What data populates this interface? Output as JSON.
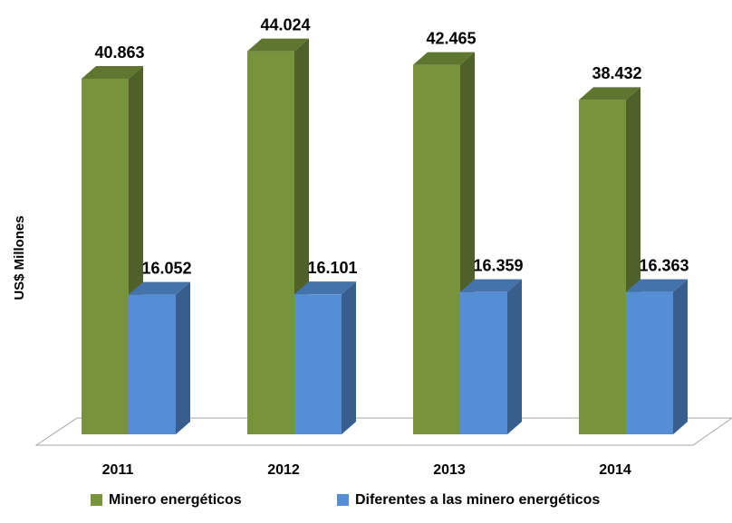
{
  "chart_data": {
    "type": "bar3d",
    "y_label": "US$ Millones",
    "categories": [
      "2011",
      "2012",
      "2013",
      "2014"
    ],
    "series": [
      {
        "name": "Minero energéticos",
        "color": "#77933c",
        "values": [
          40863,
          44024,
          42465,
          38432
        ],
        "value_labels": [
          "40.863",
          "44.024",
          "42.465",
          "38.432"
        ]
      },
      {
        "name": "Diferentes a las minero energéticos",
        "color": "#558ed5",
        "values": [
          16052,
          16101,
          16359,
          16363
        ],
        "value_labels": [
          "16.052",
          "16.101",
          "16.359",
          "16.363"
        ]
      }
    ],
    "legend": "bottom"
  }
}
